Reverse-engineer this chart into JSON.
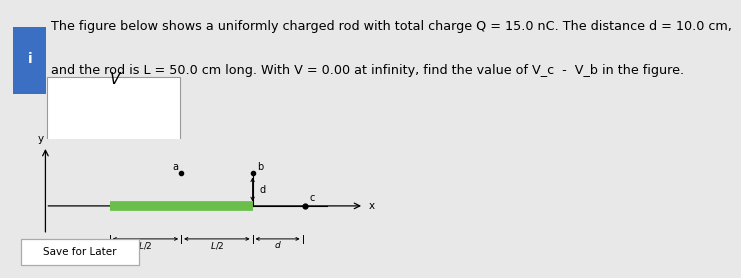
{
  "background_color": "#e8e8e8",
  "panel_bg": "#ffffff",
  "title_line1": "The figure below shows a uniformly charged rod with total charge Q = 15.0 nC. The distance d = 10.0 cm,",
  "title_line2": "and the rod is L = 50.0 cm long. With V = 0.00 at infinity, find the value of V_c  -  V_b in the figure.",
  "answer_box_color": "#3a6fc4",
  "answer_label": "V",
  "save_button_text": "Save for Later",
  "rod_color": "#6abf4b",
  "font_size_title": 9.2
}
